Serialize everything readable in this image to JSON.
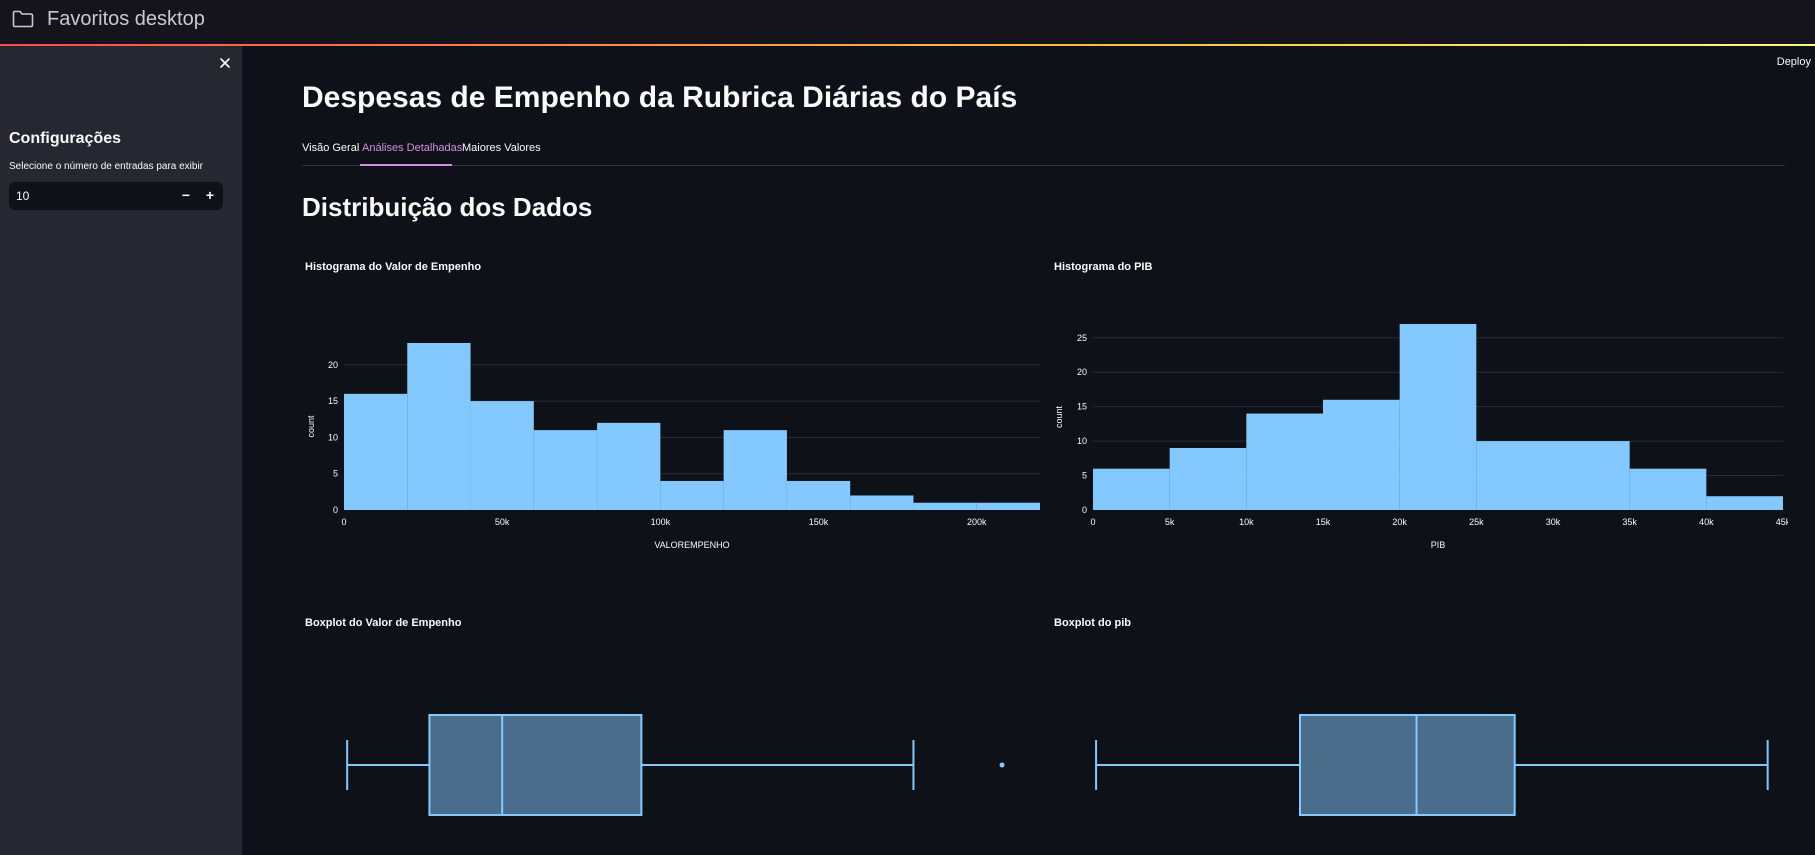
{
  "window": {
    "title": "Favoritos desktop",
    "folder_icon": "folder-icon",
    "accent_gradient": [
      "#ff4b4b",
      "#ffbd45",
      "#fffd80"
    ]
  },
  "header": {
    "deploy_label": "Deploy"
  },
  "sidebar": {
    "close_icon": "close-icon",
    "title": "Configurações",
    "input_label": "Selecione o número de entradas para exibir",
    "input_value": "10",
    "minus_label": "−",
    "plus_label": "+"
  },
  "main": {
    "title": "Despesas de Empenho da Rubrica Diárias do País",
    "tabs": [
      {
        "label": "Visão Geral",
        "active": false
      },
      {
        "label": "Análises Detalhadas",
        "active": true
      },
      {
        "label": "Maiores Valores",
        "active": false
      }
    ],
    "section_title": "Distribuição dos Dados"
  },
  "colors": {
    "bar": "#83c9ff",
    "box_fill": "#4a6d8c",
    "box_stroke": "#83c9ff",
    "background": "#0e1117",
    "tab_active": "#d88ee0"
  },
  "chart_data": [
    {
      "type": "bar",
      "title": "Histograma do Valor de Empenho",
      "xlabel": "VALOREMPENHO",
      "ylabel": "count",
      "bin_edges": [
        0,
        20000,
        40000,
        60000,
        80000,
        100000,
        120000,
        140000,
        160000,
        180000,
        200000,
        220000
      ],
      "values": [
        16,
        23,
        15,
        11,
        12,
        4,
        11,
        4,
        2,
        1,
        1
      ],
      "xlim": [
        0,
        220000
      ],
      "ylim": [
        0,
        23
      ],
      "xticks": [
        0,
        50000,
        100000,
        150000,
        200000
      ],
      "xtick_labels": [
        "0",
        "50k",
        "100k",
        "150k",
        "200k"
      ],
      "yticks": [
        0,
        5,
        10,
        15,
        20
      ],
      "grid": true
    },
    {
      "type": "bar",
      "title": "Histograma do PIB",
      "xlabel": "PIB",
      "ylabel": "count",
      "bin_edges": [
        0,
        5000,
        10000,
        15000,
        20000,
        25000,
        30000,
        35000,
        40000,
        45000
      ],
      "values": [
        6,
        9,
        14,
        16,
        27,
        10,
        10,
        6,
        2
      ],
      "xlim": [
        0,
        45000
      ],
      "ylim": [
        0,
        27
      ],
      "xticks": [
        0,
        5000,
        10000,
        15000,
        20000,
        25000,
        30000,
        35000,
        40000,
        45000
      ],
      "xtick_labels": [
        "0",
        "5k",
        "10k",
        "15k",
        "20k",
        "25k",
        "30k",
        "35k",
        "40k",
        "45k"
      ],
      "yticks": [
        0,
        5,
        10,
        15,
        20,
        25
      ],
      "grid": true
    },
    {
      "type": "box",
      "title": "Boxplot do Valor de Empenho",
      "xlim": [
        0,
        220000
      ],
      "whisker_low": 1000,
      "q1": 27000,
      "median": 50000,
      "q3": 94000,
      "whisker_high": 180000,
      "outliers": [
        208000
      ]
    },
    {
      "type": "box",
      "title": "Boxplot do pib",
      "xlim": [
        0,
        45000
      ],
      "whisker_low": 200,
      "q1": 13500,
      "median": 21100,
      "q3": 27500,
      "whisker_high": 44000,
      "outliers": []
    }
  ]
}
